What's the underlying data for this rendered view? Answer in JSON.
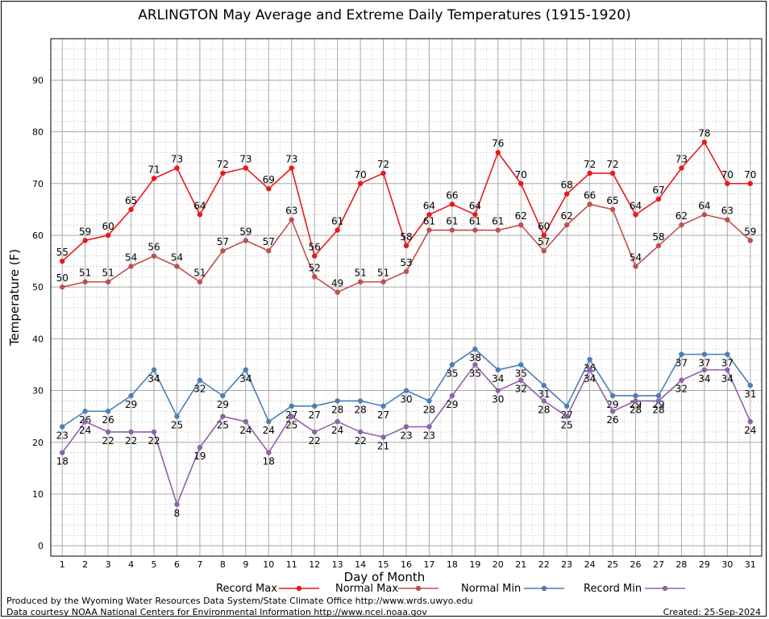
{
  "chart_data": {
    "type": "line",
    "title": "ARLINGTON May Average and Extreme Daily Temperatures (1915-1920)",
    "xlabel": "Day of Month",
    "ylabel": "Temperature (F)",
    "x": [
      1,
      2,
      3,
      4,
      5,
      6,
      7,
      8,
      9,
      10,
      11,
      12,
      13,
      14,
      15,
      16,
      17,
      18,
      19,
      20,
      21,
      22,
      23,
      24,
      25,
      26,
      27,
      28,
      29,
      30,
      31
    ],
    "ylim": [
      -2,
      98
    ],
    "yticks": [
      0,
      10,
      20,
      30,
      40,
      50,
      60,
      70,
      80,
      90
    ],
    "grid": true,
    "legend_position": "bottom",
    "series": [
      {
        "name": "Record Max",
        "color": "#e8191c",
        "values": [
          55,
          59,
          60,
          65,
          71,
          73,
          64,
          72,
          73,
          69,
          73,
          56,
          61,
          70,
          72,
          58,
          64,
          66,
          64,
          76,
          70,
          60,
          68,
          72,
          72,
          64,
          67,
          73,
          78,
          70,
          70
        ]
      },
      {
        "name": "Normal Max",
        "color": "#c0504d",
        "values": [
          50,
          51,
          51,
          54,
          56,
          54,
          51,
          57,
          59,
          57,
          63,
          52,
          49,
          51,
          51,
          53,
          61,
          61,
          61,
          61,
          62,
          57,
          62,
          66,
          65,
          54,
          58,
          62,
          64,
          63,
          59
        ]
      },
      {
        "name": "Normal Min",
        "color": "#4a7fb5",
        "values": [
          23,
          26,
          26,
          29,
          34,
          25,
          32,
          29,
          34,
          24,
          27,
          27,
          28,
          28,
          27,
          30,
          28,
          35,
          38,
          34,
          35,
          31,
          27,
          36,
          29,
          29,
          29,
          37,
          37,
          37,
          31
        ]
      },
      {
        "name": "Record Min",
        "color": "#8e62a8",
        "values": [
          18,
          24,
          22,
          22,
          22,
          8,
          19,
          25,
          24,
          18,
          25,
          22,
          24,
          22,
          21,
          23,
          23,
          29,
          35,
          30,
          32,
          28,
          25,
          34,
          26,
          28,
          28,
          32,
          34,
          34,
          24
        ]
      }
    ]
  },
  "footer": {
    "credit_line1": "Produced by the Wyoming Water Resources Data System/State Climate Office http://www.wrds.uwyo.edu",
    "credit_line2": "Data courtesy NOAA National Centers for Environmental Information http://www.ncei.noaa.gov",
    "created": "Created:  25-Sep-2024"
  }
}
